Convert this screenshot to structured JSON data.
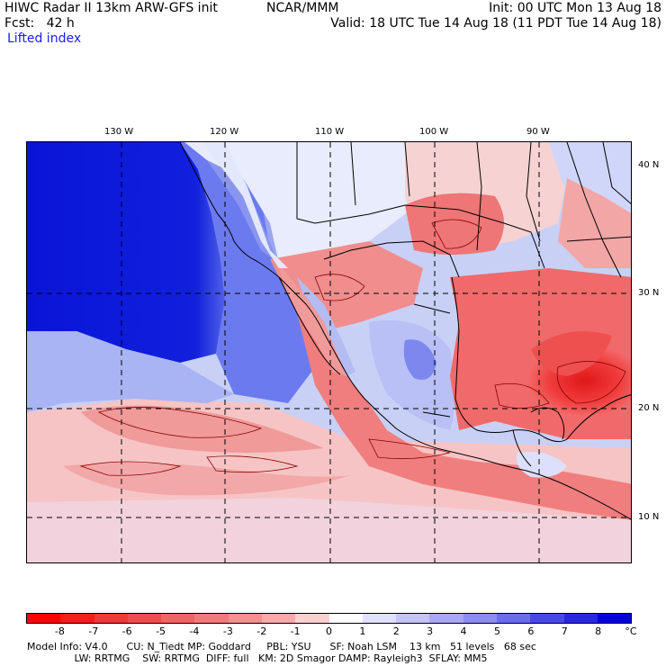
{
  "header": {
    "model_line": "HIWC Radar II 13km ARW-GFS init",
    "org": "NCAR/MMM",
    "init": "Init: 00 UTC Mon 13 Aug 18",
    "forecast": "Fcst:   42 h",
    "valid": "Valid: 18 UTC Tue 14 Aug 18 (11 PDT Tue 14 Aug 18)",
    "field": "Lifted index"
  },
  "map": {
    "longitude_labels": [
      "130 W",
      "120 W",
      "110 W",
      "100 W",
      "90 W"
    ],
    "latitude_labels": [
      "40 N",
      "30 N",
      "20 N",
      "10 N"
    ],
    "colors": {
      "ocean_stable": "#0a14d8",
      "land_unstable": "#f07070",
      "boundaries": "#000000"
    }
  },
  "colorbar": {
    "labels": [
      "-8",
      "-7",
      "-6",
      "-5",
      "-4",
      "-3",
      "-2",
      "-1",
      "0",
      "1",
      "2",
      "3",
      "4",
      "5",
      "6",
      "7",
      "8"
    ],
    "unit": "°C",
    "colors": [
      "#ff0000",
      "#f41c1c",
      "#f03838",
      "#f04c4c",
      "#f06464",
      "#f27a7a",
      "#f49090",
      "#f7aaaa",
      "#fbd0d0",
      "#ffffff",
      "#e0e0ff",
      "#c4c4fa",
      "#a8a8f4",
      "#8c8cf0",
      "#6c6cee",
      "#4848ea",
      "#2828e4",
      "#0000e0"
    ]
  },
  "footer": {
    "line1": "Model Info: V4.0      CU: N_Tiedt MP: Goddard     PBL: YSU      SF: Noah LSM    13 km   51 levels   68 sec",
    "line2": "               LW: RRTMG    SW: RRTMG  DIFF: full   KM: 2D Smagor DAMP: Rayleigh3  SFLAY: MM5"
  }
}
